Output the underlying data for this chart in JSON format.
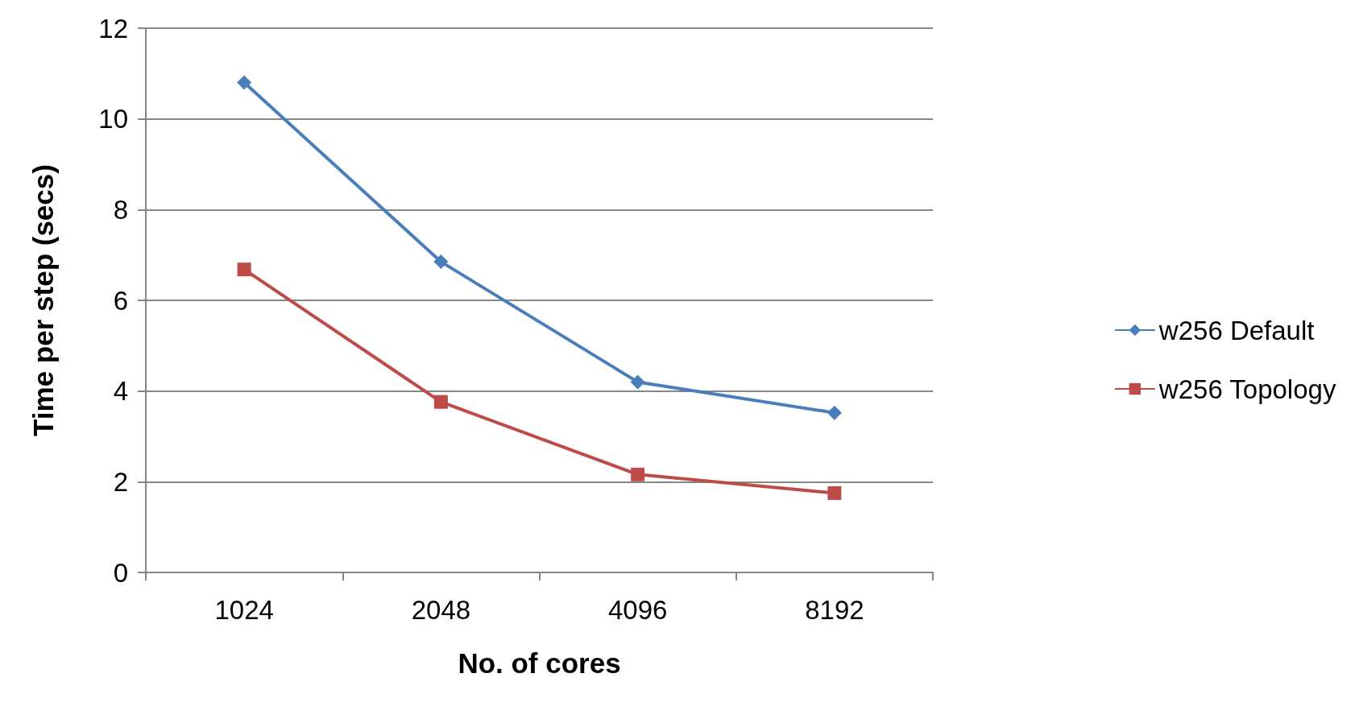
{
  "chart_data": {
    "type": "line",
    "xlabel": "No. of cores",
    "ylabel": "Time per step (secs)",
    "categories": [
      "1024",
      "2048",
      "4096",
      "8192"
    ],
    "series": [
      {
        "name": "w256 Default",
        "color": "#4a7ebb",
        "marker": "diamond",
        "values": [
          10.8,
          6.85,
          4.2,
          3.52
        ]
      },
      {
        "name": "w256 Topology",
        "color": "#be4b48",
        "marker": "square",
        "values": [
          6.68,
          3.76,
          2.16,
          1.75
        ]
      }
    ],
    "ylim": [
      0,
      12
    ],
    "yticks": [
      0,
      2,
      4,
      6,
      8,
      10,
      12
    ],
    "grid": "y",
    "legend": "right"
  }
}
